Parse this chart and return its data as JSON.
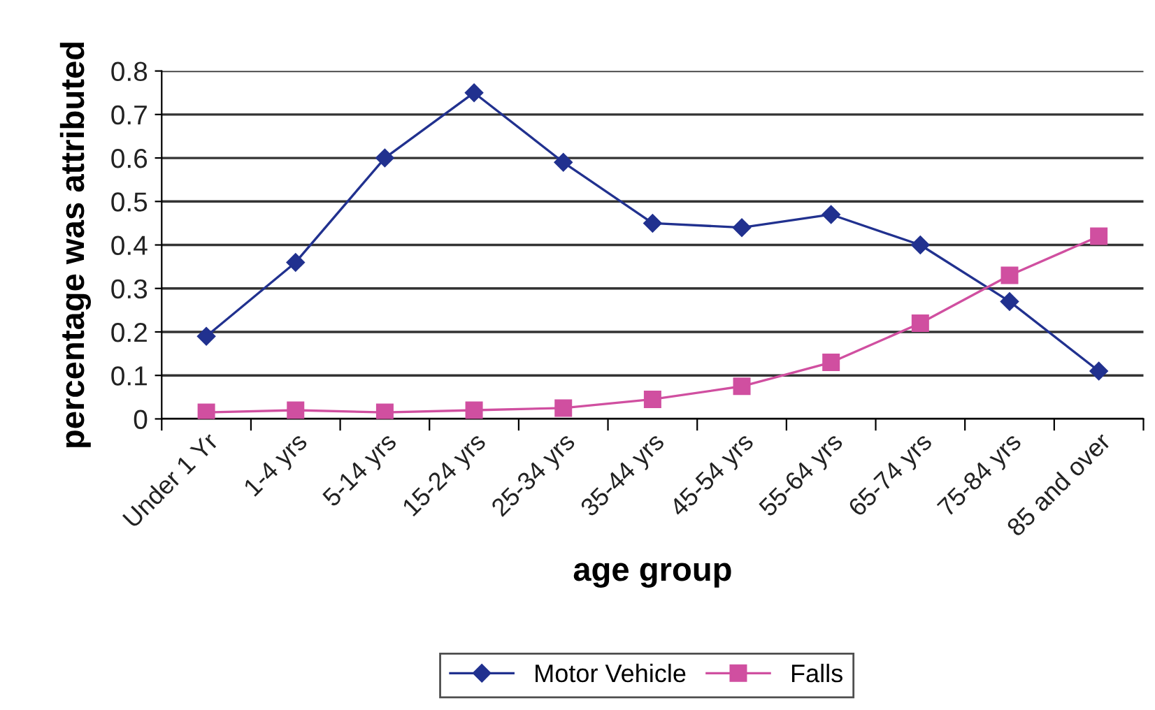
{
  "chart_data": {
    "type": "line",
    "xlabel": "age group",
    "ylabel": "percentage was attributed",
    "categories": [
      "Under 1 Yr",
      "1-4 yrs",
      "5-14 yrs",
      "15-24 yrs",
      "25-34 yrs",
      "35-44 yrs",
      "45-54 yrs",
      "55-64 yrs",
      "65-74 yrs",
      "75-84 yrs",
      "85 and over"
    ],
    "series": [
      {
        "name": "Motor Vehicle",
        "color": "#21318f",
        "marker": "diamond",
        "values": [
          0.19,
          0.36,
          0.6,
          0.75,
          0.59,
          0.45,
          0.44,
          0.47,
          0.4,
          0.27,
          0.11
        ]
      },
      {
        "name": "Falls",
        "color": "#d04fa0",
        "marker": "square",
        "values": [
          0.015,
          0.02,
          0.015,
          0.02,
          0.025,
          0.045,
          0.075,
          0.13,
          0.22,
          0.33,
          0.42
        ]
      }
    ],
    "ylim": [
      0,
      0.8
    ],
    "yticks": [
      0,
      0.1,
      0.2,
      0.3,
      0.4,
      0.5,
      0.6,
      0.7,
      0.8
    ],
    "grid": "y",
    "legend": "bottom",
    "line_style": "solid"
  }
}
